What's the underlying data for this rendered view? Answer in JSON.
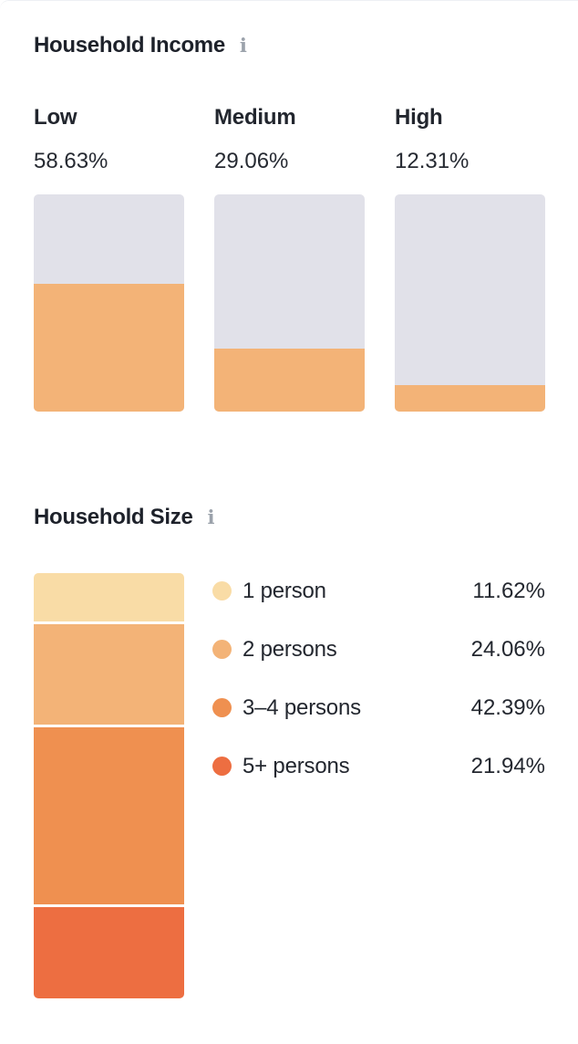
{
  "sections": [
    {
      "title": "Household Income",
      "info_glyph": "ℹ"
    },
    {
      "title": "Household Size",
      "info_glyph": "ℹ"
    }
  ],
  "chart_data": [
    {
      "type": "bar",
      "title": "Household Income",
      "categories": [
        "Low",
        "Medium",
        "High"
      ],
      "values": [
        58.63,
        29.06,
        12.31
      ],
      "value_labels": [
        "58.63%",
        "29.06%",
        "12.31%"
      ],
      "ylim": [
        0,
        100
      ],
      "grid": false,
      "legend_position": "none",
      "fill_color": "#f3b377",
      "track_color": "#e1e1e9",
      "layout_hint": "three vertical progress columns, labels and percents above each bar"
    },
    {
      "type": "bar",
      "subtype": "stacked-single-column",
      "title": "Household Size",
      "categories": [
        "1 person",
        "2 persons",
        "3–4 persons",
        "5+ persons"
      ],
      "values": [
        11.62,
        24.06,
        42.39,
        21.94
      ],
      "value_labels": [
        "11.62%",
        "24.06%",
        "42.39%",
        "21.94%"
      ],
      "colors": [
        "#f9dca6",
        "#f3b377",
        "#ef9050",
        "#ed6e41"
      ],
      "ylim": [
        0,
        100
      ],
      "grid": false,
      "legend_position": "right",
      "layout_hint": "single stacked column on left, dot legend with right-aligned percents"
    }
  ]
}
